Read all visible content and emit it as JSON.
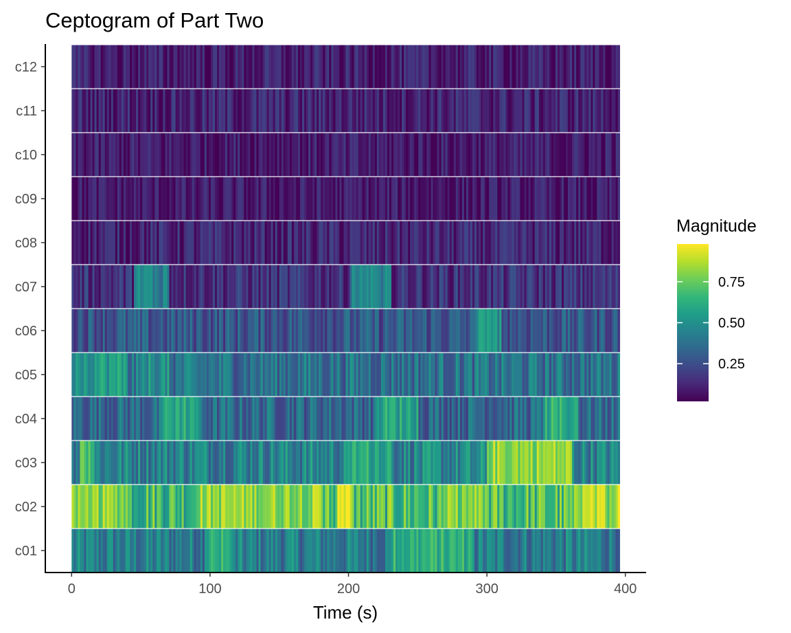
{
  "chart_data": {
    "type": "heatmap",
    "title": "Ceptogram of Part Two",
    "xlabel": "Time (s)",
    "ylabel": "",
    "xlim": [
      -19,
      415
    ],
    "x_ticks": [
      0,
      100,
      200,
      300,
      400
    ],
    "x_tick_labels": [
      "0",
      "100",
      "200",
      "300",
      "400"
    ],
    "x_extent": [
      0,
      396
    ],
    "rows": [
      "c01",
      "c02",
      "c03",
      "c04",
      "c05",
      "c06",
      "c07",
      "c08",
      "c09",
      "c10",
      "c11",
      "c12"
    ],
    "row_mean_magnitude": [
      0.42,
      0.68,
      0.45,
      0.35,
      0.38,
      0.28,
      0.16,
      0.12,
      0.08,
      0.09,
      0.12,
      0.1
    ],
    "row_peaks": {
      "c01": [
        [
          95,
          115,
          0.6
        ],
        [
          230,
          290,
          0.62
        ]
      ],
      "c02": [
        [
          15,
          40,
          0.8
        ],
        [
          90,
          180,
          0.82
        ],
        [
          192,
          202,
          0.97
        ],
        [
          270,
          300,
          0.78
        ],
        [
          365,
          385,
          0.85
        ],
        [
          393,
          396,
          0.98
        ]
      ],
      "c03": [
        [
          5,
          15,
          0.7
        ],
        [
          200,
          230,
          0.6
        ],
        [
          300,
          360,
          0.82
        ]
      ],
      "c04": [
        [
          65,
          90,
          0.6
        ],
        [
          220,
          250,
          0.58
        ],
        [
          340,
          365,
          0.6
        ]
      ],
      "c05": [
        [
          0,
          40,
          0.55
        ],
        [
          50,
          70,
          0.5
        ]
      ],
      "c06": [
        [
          290,
          310,
          0.5
        ]
      ],
      "c07": [
        [
          45,
          70,
          0.45
        ],
        [
          200,
          230,
          0.42
        ]
      ]
    },
    "colorbar": {
      "title": "Magnitude",
      "range": [
        0.02,
        0.98
      ],
      "ticks": [
        0.25,
        0.5,
        0.75
      ],
      "tick_labels": [
        "0.25",
        "0.50",
        "0.75"
      ],
      "colormap": "viridis",
      "colors": [
        "#440154",
        "#482878",
        "#3e4989",
        "#31688e",
        "#26828e",
        "#1f9e89",
        "#35b779",
        "#6ece58",
        "#b5de2b",
        "#fde725"
      ]
    },
    "legend_position": "right",
    "grid": false
  }
}
